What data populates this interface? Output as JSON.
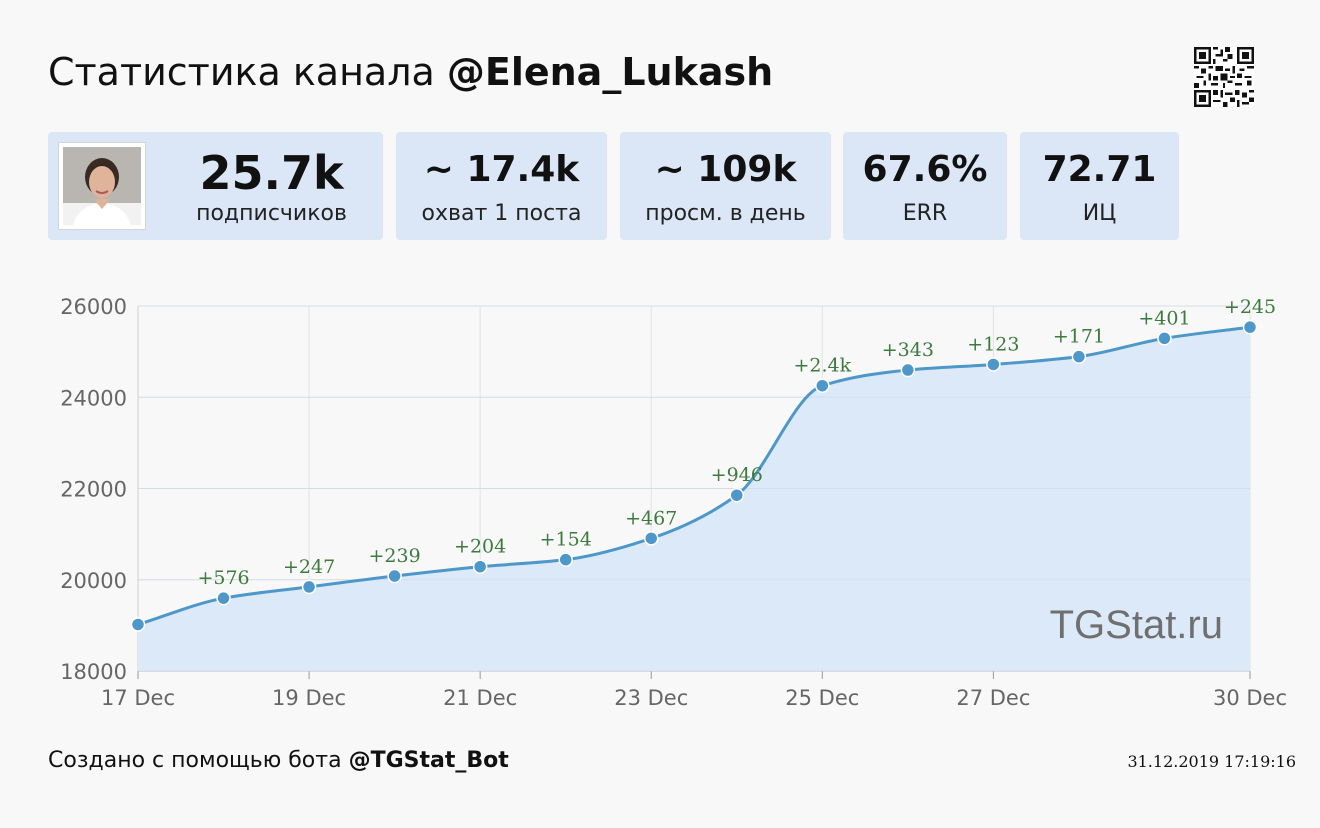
{
  "header": {
    "title_prefix": "Статистика канала",
    "channel": "@Elena_Lukash"
  },
  "stats": [
    {
      "value": "25.7k",
      "label": "подписчиков"
    },
    {
      "value": "~ 17.4k",
      "label": "охват 1 поста"
    },
    {
      "value": "~ 109k",
      "label": "просм. в день"
    },
    {
      "value": "67.6%",
      "label": "ERR"
    },
    {
      "value": "72.71",
      "label": "ИЦ"
    }
  ],
  "watermark": "TGStat.ru",
  "footer": {
    "created_text": "Создано с помощью бота",
    "bot": "@TGStat_Bot",
    "timestamp": "31.12.2019 17:19:16"
  },
  "colors": {
    "line": "#4d97c9",
    "area": "#dce9f9",
    "delta_text": "#3d7a3d",
    "card_bg": "#dbe7f7"
  },
  "chart_data": {
    "type": "area",
    "series": [
      {
        "x": [
          "2019-12-17",
          "2019-12-18",
          "2019-12-19",
          "2019-12-20",
          "2019-12-21",
          "2019-12-22",
          "2019-12-23",
          "2019-12-24",
          "2019-12-25",
          "2019-12-26",
          "2019-12-27",
          "2019-12-28",
          "2019-12-29",
          "2019-12-30"
        ],
        "values": [
          19020,
          19596,
          19843,
          20082,
          20286,
          20440,
          20907,
          21853,
          24253,
          24596,
          24719,
          24890,
          25291,
          25536
        ],
        "point_labels": [
          "",
          "+576",
          "+247",
          "+239",
          "+204",
          "+154",
          "+467",
          "+946",
          "+2.4k",
          "+343",
          "+123",
          "+171",
          "+401",
          "+245"
        ]
      }
    ],
    "x_ticks": [
      {
        "date": "2019-12-17",
        "label": "17 Dec"
      },
      {
        "date": "2019-12-19",
        "label": "19 Dec"
      },
      {
        "date": "2019-12-21",
        "label": "21 Dec"
      },
      {
        "date": "2019-12-23",
        "label": "23 Dec"
      },
      {
        "date": "2019-12-25",
        "label": "25 Dec"
      },
      {
        "date": "2019-12-27",
        "label": "27 Dec"
      },
      {
        "date": "2019-12-30",
        "label": "30 Dec"
      }
    ],
    "y_ticks": [
      18000,
      20000,
      22000,
      24000,
      26000
    ],
    "ylim": [
      18000,
      26000
    ],
    "grid": true
  }
}
